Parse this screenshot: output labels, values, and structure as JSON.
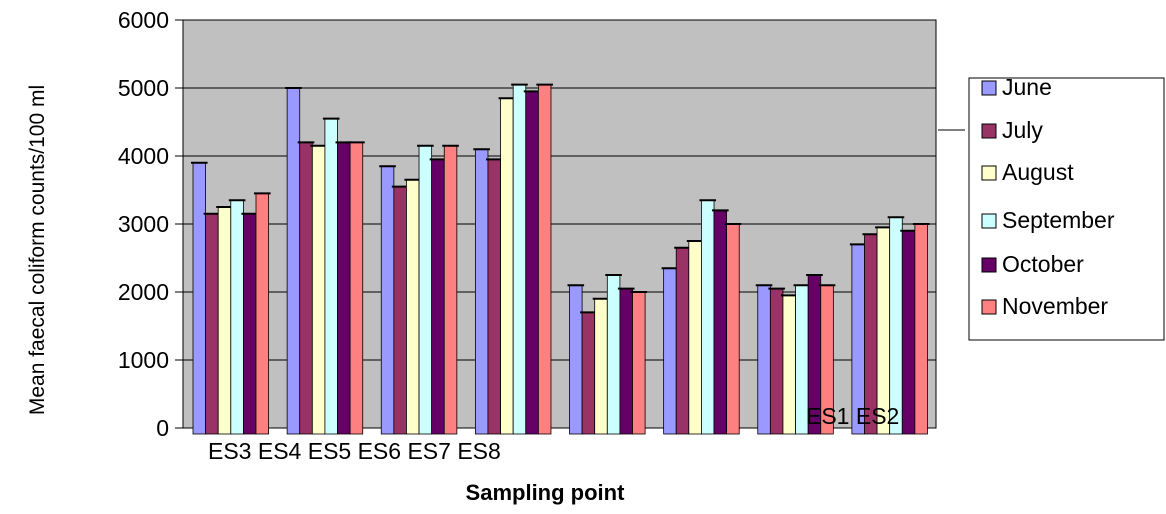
{
  "chart_data": {
    "type": "bar",
    "title": "",
    "xlabel": "Sampling point",
    "ylabel": "Mean faecal coliform counts/100 ml",
    "ylim": [
      0,
      6000
    ],
    "grid": true,
    "legend_position": "right",
    "y_tick_labels": [
      "0",
      "1000",
      "2000",
      "3000",
      "4000",
      "5000",
      "6000"
    ],
    "categories": [
      "ES3",
      "ES4",
      "ES5",
      "ES6",
      "ES7",
      "ES8",
      "ES1",
      "ES2"
    ],
    "series": [
      {
        "name": "June",
        "color": "#9999ff",
        "values": [
          3900,
          5000,
          3850,
          4100,
          2100,
          2350,
          2100,
          2700
        ]
      },
      {
        "name": "July",
        "color": "#993366",
        "values": [
          3150,
          4200,
          3550,
          3950,
          1700,
          2650,
          2050,
          2850
        ]
      },
      {
        "name": "August",
        "color": "#ffffcc",
        "values": [
          3250,
          4150,
          3650,
          4850,
          1900,
          2750,
          1950,
          2950
        ]
      },
      {
        "name": "September",
        "color": "#ccffff",
        "values": [
          3350,
          4550,
          4150,
          5050,
          2250,
          3350,
          2100,
          3100
        ]
      },
      {
        "name": "October",
        "color": "#660066",
        "values": [
          3150,
          4200,
          3950,
          4950,
          2050,
          3200,
          2250,
          2900
        ]
      },
      {
        "name": "November",
        "color": "#ff8080",
        "values": [
          3450,
          4200,
          4150,
          5050,
          2000,
          3000,
          2100,
          3000
        ]
      }
    ],
    "category_label_row": "ES3 ES4 ES5 ES6 ES7 ES8",
    "inner_category_label": "ES1 ES2"
  }
}
